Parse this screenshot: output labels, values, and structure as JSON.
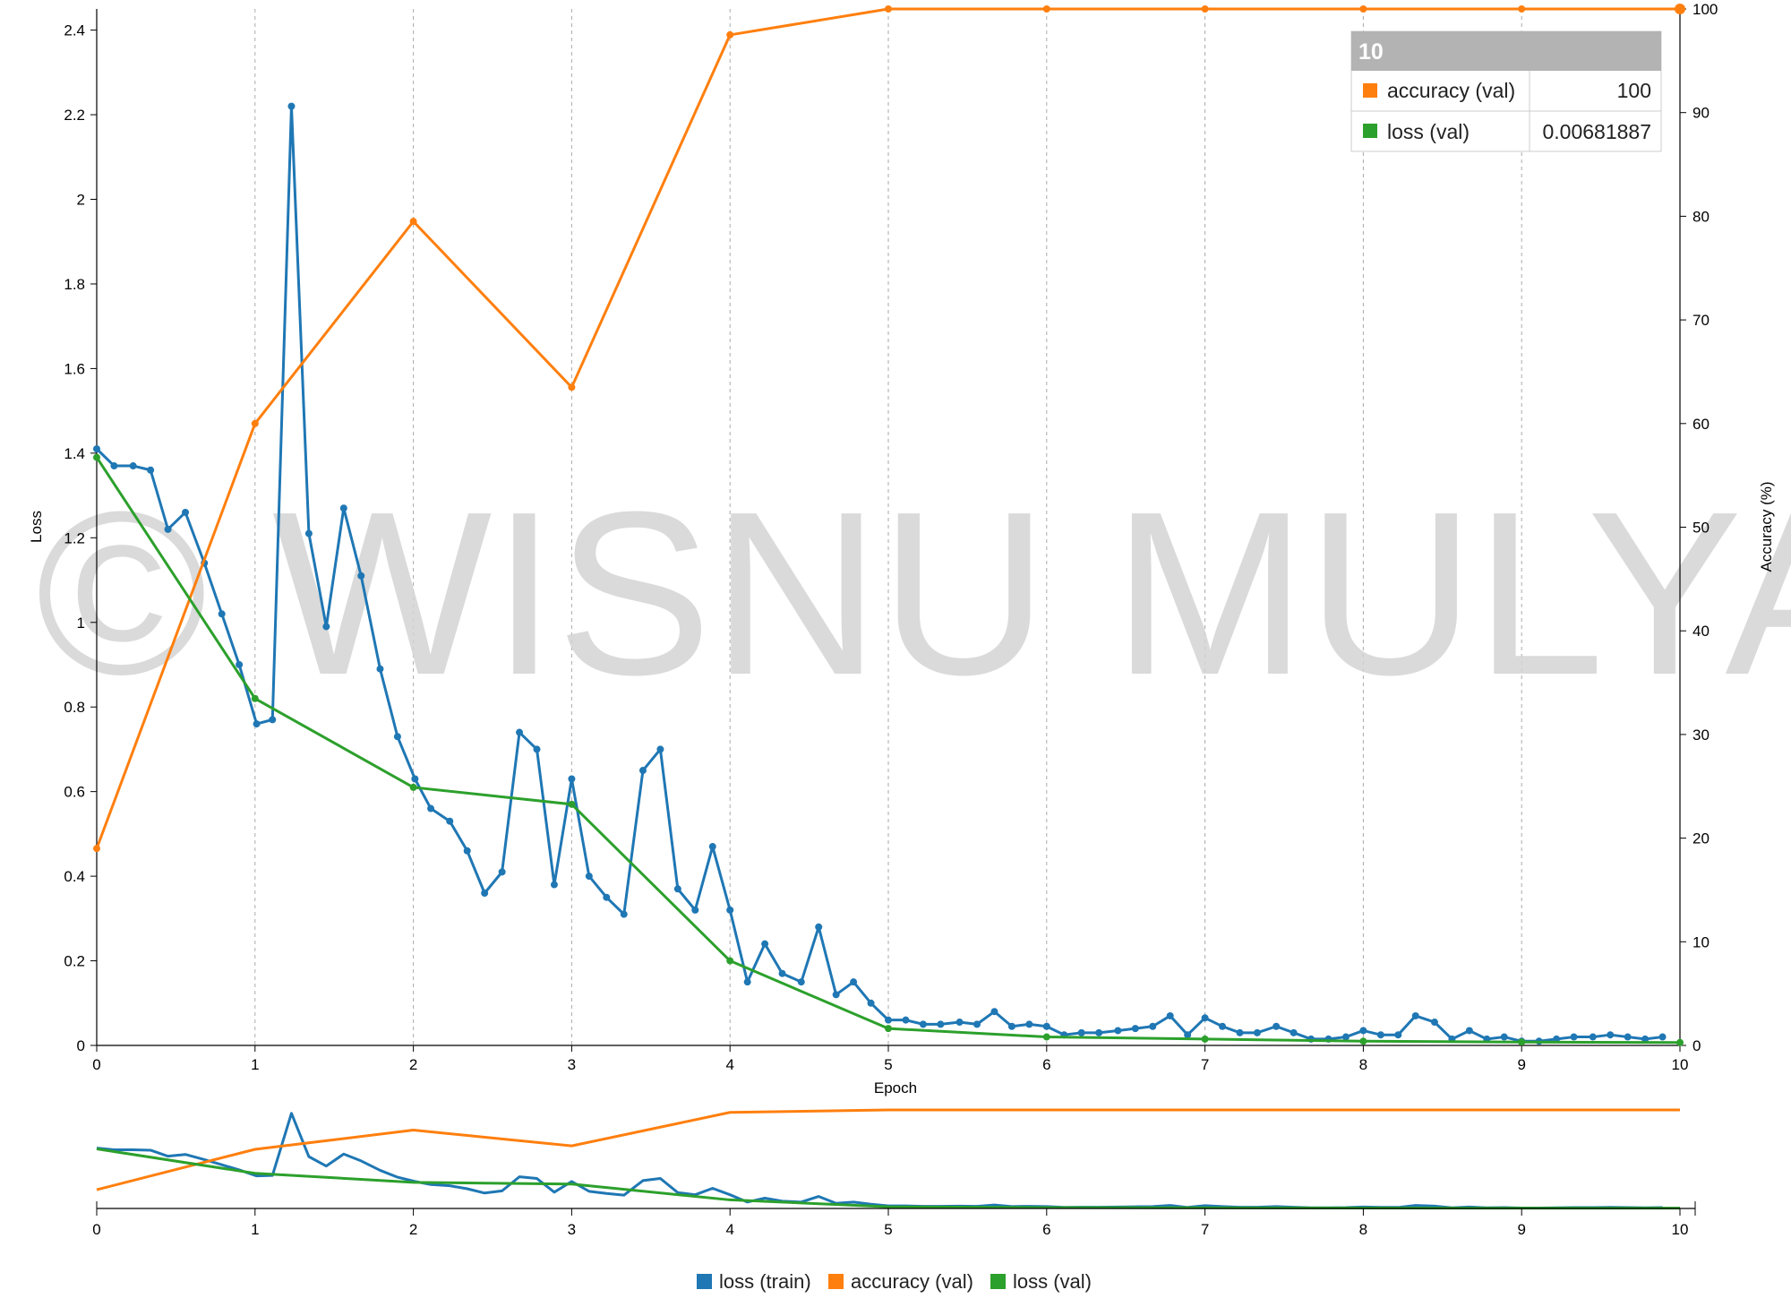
{
  "watermark": "© WISNU MULYA",
  "colors": {
    "loss_train": "#1f77b4",
    "accuracy_val": "#ff7f0e",
    "loss_val": "#2ca02c",
    "grid": "#aaaaaa",
    "tooltip_header": "#b3b3b3"
  },
  "tooltip": {
    "title": "10",
    "rows": [
      {
        "color": "#ff7f0e",
        "label": "accuracy (val)",
        "value": "100"
      },
      {
        "color": "#2ca02c",
        "label": "loss (val)",
        "value": "0.00681887"
      }
    ]
  },
  "legend": [
    {
      "color": "#1f77b4",
      "label": "loss (train)"
    },
    {
      "color": "#ff7f0e",
      "label": "accuracy (val)"
    },
    {
      "color": "#2ca02c",
      "label": "loss (val)"
    }
  ],
  "chart_data": {
    "type": "line",
    "xlabel": "Epoch",
    "ylabel": "Loss",
    "y2label": "Accuracy (%)",
    "xlim": [
      0,
      10
    ],
    "ylim": [
      0,
      2.45
    ],
    "y2lim": [
      0,
      100
    ],
    "xticks": [
      "0",
      "1",
      "2",
      "3",
      "4",
      "5",
      "6",
      "7",
      "8",
      "9",
      "10"
    ],
    "yticks": [
      "0",
      "0.2",
      "0.4",
      "0.6",
      "0.8",
      "1",
      "1.2",
      "1.4",
      "1.6",
      "1.8",
      "2",
      "2.2",
      "2.4"
    ],
    "y2ticks": [
      "0",
      "10",
      "20",
      "30",
      "40",
      "50",
      "60",
      "70",
      "80",
      "90",
      "100"
    ],
    "grid": "vertical dashed at each epoch",
    "legend_position": "bottom",
    "series": [
      {
        "name": "loss (train)",
        "axis": "left",
        "x": [
          0,
          0.11,
          0.23,
          0.34,
          0.45,
          0.56,
          0.68,
          0.79,
          0.9,
          1.01,
          1.11,
          1.23,
          1.34,
          1.45,
          1.56,
          1.67,
          1.79,
          1.9,
          2.01,
          2.11,
          2.23,
          2.34,
          2.45,
          2.56,
          2.67,
          2.78,
          2.89,
          3.0,
          3.11,
          3.22,
          3.33,
          3.45,
          3.56,
          3.67,
          3.78,
          3.89,
          4.0,
          4.11,
          4.22,
          4.33,
          4.45,
          4.56,
          4.67,
          4.78,
          4.89,
          5.0,
          5.11,
          5.22,
          5.33,
          5.45,
          5.56,
          5.67,
          5.78,
          5.89,
          6.0,
          6.11,
          6.22,
          6.33,
          6.45,
          6.56,
          6.67,
          6.78,
          6.89,
          7.0,
          7.11,
          7.22,
          7.33,
          7.45,
          7.56,
          7.67,
          7.78,
          7.89,
          8.0,
          8.11,
          8.22,
          8.33,
          8.45,
          8.56,
          8.67,
          8.78,
          8.89,
          9.0,
          9.11,
          9.22,
          9.33,
          9.45,
          9.56,
          9.67,
          9.78,
          9.89
        ],
        "values": [
          1.41,
          1.37,
          1.37,
          1.36,
          1.22,
          1.26,
          1.14,
          1.02,
          0.9,
          0.76,
          0.77,
          2.22,
          1.21,
          0.99,
          1.27,
          1.11,
          0.89,
          0.73,
          0.63,
          0.56,
          0.53,
          0.46,
          0.36,
          0.41,
          0.74,
          0.7,
          0.38,
          0.63,
          0.4,
          0.35,
          0.31,
          0.65,
          0.7,
          0.37,
          0.32,
          0.47,
          0.32,
          0.15,
          0.24,
          0.17,
          0.15,
          0.28,
          0.12,
          0.15,
          0.1,
          0.06,
          0.06,
          0.05,
          0.05,
          0.055,
          0.05,
          0.08,
          0.045,
          0.05,
          0.045,
          0.025,
          0.03,
          0.03,
          0.035,
          0.04,
          0.045,
          0.07,
          0.025,
          0.065,
          0.045,
          0.03,
          0.03,
          0.045,
          0.03,
          0.015,
          0.015,
          0.02,
          0.035,
          0.025,
          0.025,
          0.07,
          0.055,
          0.015,
          0.035,
          0.015,
          0.02,
          0.01,
          0.01,
          0.015,
          0.02,
          0.02,
          0.025,
          0.02,
          0.015,
          0.02
        ]
      },
      {
        "name": "accuracy (val)",
        "axis": "right",
        "x": [
          0,
          1,
          2,
          3,
          4,
          5,
          6,
          7,
          8,
          9,
          10
        ],
        "values": [
          19,
          60,
          79.5,
          63.5,
          97.5,
          100,
          100,
          100,
          100,
          100,
          100
        ]
      },
      {
        "name": "loss (val)",
        "axis": "left",
        "x": [
          0,
          1,
          2,
          3,
          4,
          5,
          6,
          7,
          8,
          9,
          10
        ],
        "values": [
          1.39,
          0.82,
          0.61,
          0.57,
          0.2,
          0.04,
          0.02,
          0.015,
          0.01,
          0.008,
          0.00681887
        ]
      }
    ]
  }
}
